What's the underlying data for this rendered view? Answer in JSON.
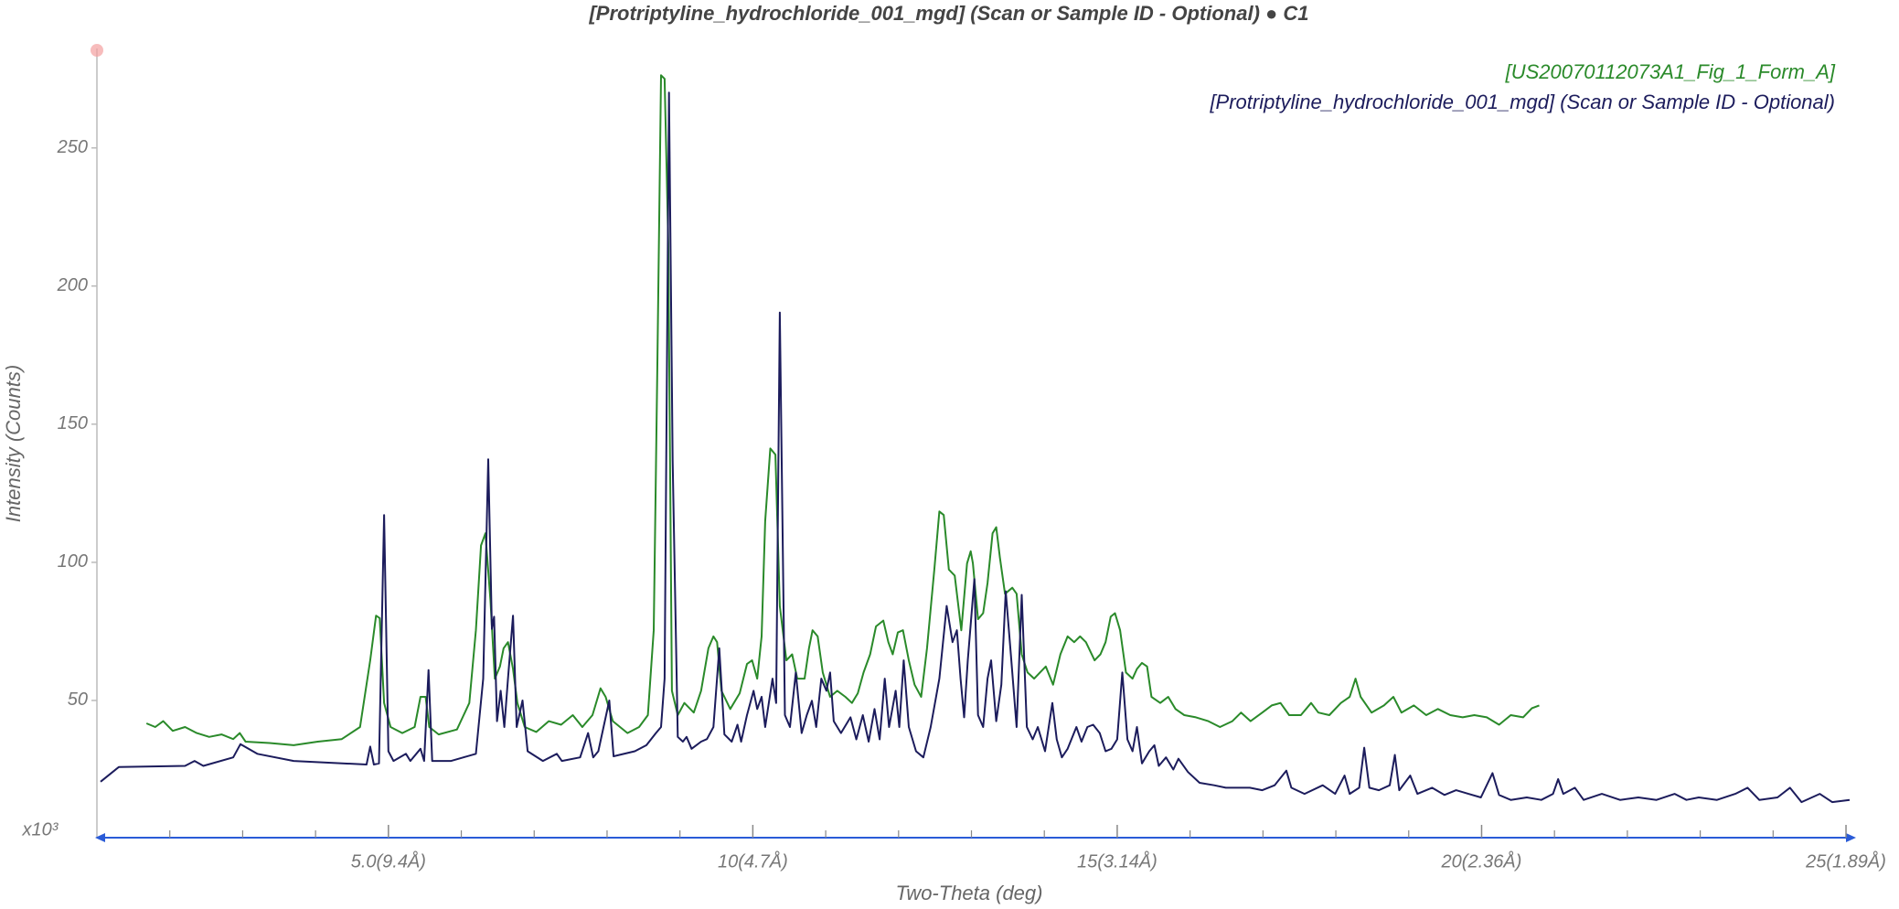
{
  "chart_data": {
    "type": "line",
    "title": "[Protriptyline_hydrochloride_001_mgd] (Scan or Sample ID - Optional) ● C1",
    "x_label": "Two-Theta (deg)",
    "y_label": "Intensity (Counts)",
    "y_multiplier": "x10³",
    "legend": "top-right",
    "xlim": [
      1,
      25.1
    ],
    "ylim": [
      0,
      286
    ],
    "xticks": [
      {
        "value": 5,
        "label": "5.0(9.4Å)"
      },
      {
        "value": 10,
        "label": "10(4.7Å)"
      },
      {
        "value": 15,
        "label": "15(3.14Å)"
      },
      {
        "value": 20,
        "label": "20(2.36Å)"
      },
      {
        "value": 25,
        "label": "25(1.89Å)"
      }
    ],
    "xminorticks": [
      2,
      3,
      4,
      6,
      7,
      8,
      9,
      11,
      12,
      13,
      14,
      16,
      17,
      18,
      19,
      21,
      22,
      23,
      24
    ],
    "yticks": [
      50,
      100,
      150,
      200,
      250
    ],
    "series": [
      {
        "name": "[US20070112073A1_Fig_1_Form_A]",
        "color": "#2a8a2a",
        "x": [
          1.68,
          1.8,
          1.91,
          2.04,
          2.21,
          2.37,
          2.54,
          2.71,
          2.87,
          2.96,
          3.04,
          3.37,
          3.7,
          4.03,
          4.36,
          4.61,
          4.75,
          4.83,
          4.88,
          4.94,
          5.03,
          5.19,
          5.36,
          5.44,
          5.51,
          5.56,
          5.69,
          5.94,
          6.11,
          6.2,
          6.27,
          6.33,
          6.4,
          6.46,
          6.53,
          6.58,
          6.64,
          6.71,
          6.77,
          6.87,
          7.03,
          7.2,
          7.37,
          7.53,
          7.66,
          7.8,
          7.91,
          7.98,
          8.08,
          8.28,
          8.44,
          8.56,
          8.64,
          8.69,
          8.74,
          8.79,
          8.84,
          8.89,
          8.97,
          9.06,
          9.19,
          9.29,
          9.39,
          9.46,
          9.51,
          9.57,
          9.69,
          9.82,
          9.92,
          9.99,
          10.06,
          10.12,
          10.17,
          10.24,
          10.31,
          10.37,
          10.46,
          10.54,
          10.61,
          10.71,
          10.77,
          10.82,
          10.89,
          10.96,
          11.06,
          11.16,
          11.27,
          11.36,
          11.44,
          11.52,
          11.61,
          11.69,
          11.79,
          11.86,
          11.92,
          11.99,
          12.06,
          12.14,
          12.22,
          12.31,
          12.39,
          12.49,
          12.56,
          12.62,
          12.69,
          12.77,
          12.86,
          12.94,
          12.99,
          13.02,
          13.09,
          13.16,
          13.22,
          13.29,
          13.34,
          13.39,
          13.46,
          13.56,
          13.62,
          13.69,
          13.77,
          13.86,
          13.94,
          14.02,
          14.12,
          14.22,
          14.32,
          14.41,
          14.49,
          14.57,
          14.69,
          14.77,
          14.84,
          14.91,
          14.97,
          15.04,
          15.12,
          15.21,
          15.27,
          15.34,
          15.41,
          15.47,
          15.59,
          15.7,
          15.8,
          15.92,
          16.08,
          16.25,
          16.41,
          16.58,
          16.7,
          16.83,
          16.99,
          17.12,
          17.24,
          17.36,
          17.52,
          17.66,
          17.76,
          17.91,
          18.07,
          18.19,
          18.27,
          18.34,
          18.49,
          18.66,
          18.79,
          18.9,
          19.07,
          19.24,
          19.4,
          19.57,
          19.74,
          19.9,
          20.07,
          20.24,
          20.4,
          20.57,
          20.69,
          20.79
        ],
        "values": [
          41.7,
          40.4,
          42.5,
          39.0,
          40.4,
          38.2,
          36.8,
          37.7,
          36.0,
          38.2,
          35.1,
          34.6,
          33.8,
          35.1,
          36.0,
          40.4,
          64.5,
          80.7,
          79.8,
          49.1,
          40.4,
          38.2,
          40.4,
          51.3,
          51.3,
          40.4,
          37.7,
          39.5,
          49.1,
          75.4,
          106.1,
          110.5,
          86.4,
          57.9,
          62.3,
          68.9,
          71.1,
          61.4,
          49.1,
          40.4,
          38.6,
          42.5,
          41.2,
          44.7,
          40.4,
          44.7,
          54.4,
          51.3,
          42.5,
          38.2,
          40.4,
          44.7,
          75.4,
          171.9,
          276.3,
          275.0,
          215.8,
          53.5,
          44.7,
          49.1,
          45.6,
          53.5,
          68.9,
          73.2,
          71.1,
          53.5,
          46.9,
          52.6,
          63.2,
          64.5,
          57.9,
          73.2,
          114.9,
          141.2,
          139.0,
          84.2,
          64.5,
          66.7,
          57.9,
          57.9,
          68.9,
          75.4,
          73.2,
          60.1,
          51.3,
          53.5,
          51.3,
          49.1,
          52.6,
          60.1,
          66.7,
          76.8,
          78.9,
          71.1,
          66.7,
          74.6,
          75.4,
          64.5,
          55.7,
          51.3,
          68.9,
          97.4,
          118.4,
          117.1,
          97.4,
          95.2,
          75.4,
          99.6,
          104.0,
          99.6,
          79.4,
          81.6,
          92.5,
          110.5,
          112.7,
          101.8,
          88.6,
          90.8,
          88.6,
          66.7,
          60.1,
          57.9,
          60.1,
          62.3,
          55.7,
          66.7,
          73.2,
          71.1,
          73.2,
          71.1,
          64.5,
          66.7,
          71.1,
          80.3,
          81.6,
          75.4,
          60.1,
          57.9,
          61.4,
          63.6,
          62.3,
          51.3,
          49.1,
          51.3,
          46.9,
          44.7,
          43.9,
          42.5,
          40.4,
          42.5,
          45.6,
          42.5,
          45.6,
          48.2,
          49.1,
          44.7,
          44.7,
          49.1,
          45.6,
          44.7,
          49.1,
          51.3,
          57.9,
          51.3,
          45.6,
          48.2,
          51.3,
          45.6,
          48.2,
          44.7,
          46.9,
          44.7,
          43.9,
          44.7,
          43.9,
          41.2,
          44.7,
          43.9,
          47.2,
          48.2
        ]
      },
      {
        "name": "[Protriptyline_hydrochloride_001_mgd] (Scan or Sample ID - Optional)",
        "color": "#1c1c5c",
        "x": [
          1.05,
          1.3,
          2.21,
          2.34,
          2.46,
          2.87,
          2.97,
          3.2,
          3.7,
          4.7,
          4.75,
          4.8,
          4.87,
          4.94,
          5.0,
          5.07,
          5.24,
          5.3,
          5.44,
          5.49,
          5.55,
          5.6,
          5.86,
          6.03,
          6.2,
          6.3,
          6.37,
          6.42,
          6.45,
          6.49,
          6.54,
          6.59,
          6.64,
          6.71,
          6.76,
          6.84,
          6.91,
          7.12,
          7.31,
          7.38,
          7.63,
          7.74,
          7.81,
          7.88,
          8.03,
          8.09,
          8.38,
          8.54,
          8.67,
          8.74,
          8.79,
          8.85,
          8.9,
          8.97,
          9.04,
          9.09,
          9.16,
          9.29,
          9.37,
          9.46,
          9.54,
          9.61,
          9.71,
          9.79,
          9.84,
          9.92,
          10.01,
          10.06,
          10.12,
          10.17,
          10.27,
          10.32,
          10.37,
          10.44,
          10.51,
          10.59,
          10.67,
          10.74,
          10.81,
          10.87,
          10.94,
          11.01,
          11.06,
          11.11,
          11.21,
          11.34,
          11.42,
          11.51,
          11.59,
          11.67,
          11.74,
          11.81,
          11.87,
          11.96,
          12.01,
          12.07,
          12.14,
          12.24,
          12.34,
          12.44,
          12.56,
          12.66,
          12.74,
          12.8,
          12.85,
          12.9,
          12.95,
          13.04,
          13.09,
          13.16,
          13.22,
          13.27,
          13.34,
          13.41,
          13.47,
          13.54,
          13.62,
          13.69,
          13.76,
          13.84,
          13.91,
          14.01,
          14.11,
          14.17,
          14.24,
          14.32,
          14.44,
          14.51,
          14.59,
          14.67,
          14.76,
          14.84,
          14.92,
          15.0,
          15.07,
          15.14,
          15.21,
          15.27,
          15.34,
          15.44,
          15.51,
          15.57,
          15.67,
          15.77,
          15.84,
          15.97,
          16.13,
          16.33,
          16.49,
          16.66,
          16.82,
          16.99,
          17.16,
          17.32,
          17.39,
          17.57,
          17.82,
          17.99,
          18.12,
          18.19,
          18.32,
          18.39,
          18.46,
          18.59,
          18.74,
          18.81,
          18.87,
          19.02,
          19.12,
          19.32,
          19.49,
          19.65,
          19.82,
          19.99,
          20.15,
          20.24,
          20.4,
          20.62,
          20.82,
          20.98,
          21.05,
          21.12,
          21.28,
          21.4,
          21.65,
          21.9,
          22.15,
          22.4,
          22.65,
          22.81,
          22.98,
          23.23,
          23.48,
          23.65,
          23.81,
          24.06,
          24.23,
          24.39,
          24.64,
          24.81,
          25.05
        ],
        "values": [
          20.6,
          25.9,
          26.3,
          28.1,
          26.3,
          29.4,
          34.2,
          30.7,
          28.1,
          26.8,
          33.3,
          26.8,
          27.2,
          117.1,
          31.6,
          28.1,
          30.7,
          28.1,
          32.5,
          28.1,
          61.0,
          28.1,
          28.1,
          29.4,
          30.7,
          57.9,
          137.3,
          75.9,
          80.3,
          42.5,
          53.5,
          40.4,
          57.9,
          80.7,
          40.4,
          50.0,
          31.6,
          28.1,
          30.7,
          28.1,
          29.4,
          38.2,
          29.4,
          31.6,
          50.0,
          29.8,
          31.6,
          33.8,
          38.2,
          40.4,
          57.9,
          270.0,
          136.8,
          36.8,
          35.1,
          36.8,
          32.5,
          35.1,
          36.0,
          40.4,
          68.9,
          37.7,
          35.1,
          41.2,
          35.1,
          44.7,
          53.5,
          46.9,
          51.3,
          40.4,
          57.9,
          49.1,
          190.4,
          44.7,
          40.4,
          60.1,
          38.2,
          44.7,
          49.9,
          40.4,
          57.9,
          53.5,
          60.1,
          42.5,
          38.2,
          43.9,
          35.9,
          44.7,
          35.1,
          46.9,
          35.9,
          57.9,
          40.4,
          53.5,
          40.4,
          64.5,
          40.4,
          31.6,
          29.4,
          40.4,
          57.9,
          84.2,
          71.1,
          75.4,
          57.9,
          43.9,
          64.5,
          93.9,
          44.7,
          40.4,
          57.9,
          64.5,
          42.5,
          55.7,
          89.5,
          66.7,
          40.4,
          88.2,
          40.4,
          35.9,
          40.4,
          31.6,
          49.1,
          35.9,
          29.4,
          32.5,
          40.4,
          35.1,
          40.4,
          41.2,
          38.2,
          31.6,
          32.5,
          35.9,
          60.1,
          35.9,
          31.6,
          40.4,
          27.2,
          31.6,
          33.8,
          26.3,
          29.4,
          25.0,
          28.9,
          24.1,
          20.2,
          19.3,
          18.4,
          18.4,
          18.4,
          17.5,
          19.3,
          24.6,
          18.4,
          16.2,
          19.3,
          16.2,
          22.8,
          16.2,
          18.4,
          32.9,
          18.4,
          17.5,
          19.3,
          30.3,
          17.5,
          22.8,
          16.2,
          18.4,
          15.8,
          17.5,
          16.2,
          14.9,
          23.7,
          15.8,
          14.0,
          14.9,
          14.0,
          16.2,
          21.5,
          16.2,
          18.4,
          14.0,
          16.2,
          14.0,
          14.9,
          14.0,
          16.2,
          14.0,
          14.9,
          14.0,
          16.2,
          18.4,
          14.0,
          14.9,
          18.4,
          13.2,
          16.2,
          13.2,
          14.0
        ]
      }
    ]
  }
}
